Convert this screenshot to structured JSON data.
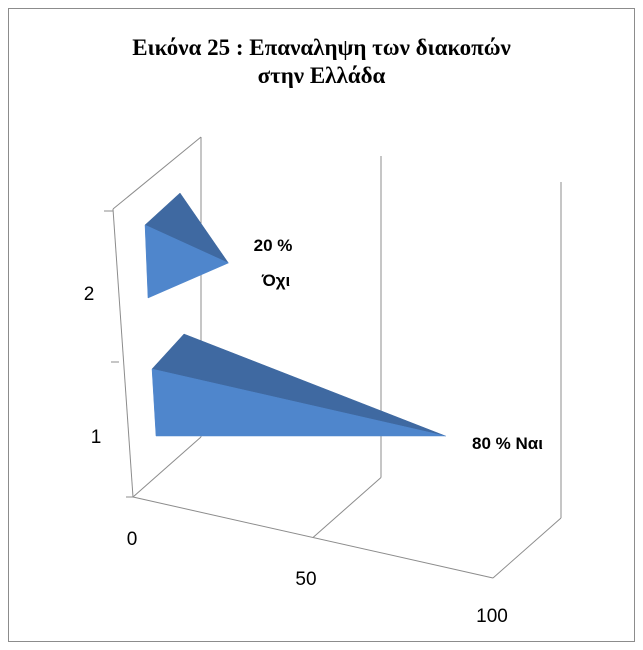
{
  "chart_data": {
    "type": "bar",
    "style": "3d-pyramid-horizontal",
    "title": "Εικόνα 25 : Επαναληψη των διακοπών\nστην Ελλάδα",
    "categories": [
      "1",
      "2"
    ],
    "values": [
      80,
      20
    ],
    "data_labels": [
      "80 % Ναι",
      "20 %\nΌχι"
    ],
    "x_ticks": [
      "0",
      "50",
      "100"
    ],
    "y_ticks": [
      "1",
      "2"
    ],
    "xlim": [
      0,
      100
    ],
    "xlabel": "",
    "ylabel": "",
    "colors": {
      "face_light": "#4f86cc",
      "face_dark": "#3f69a1",
      "gridline": "#8c8c8c",
      "frame": "#8c8c8c"
    }
  }
}
